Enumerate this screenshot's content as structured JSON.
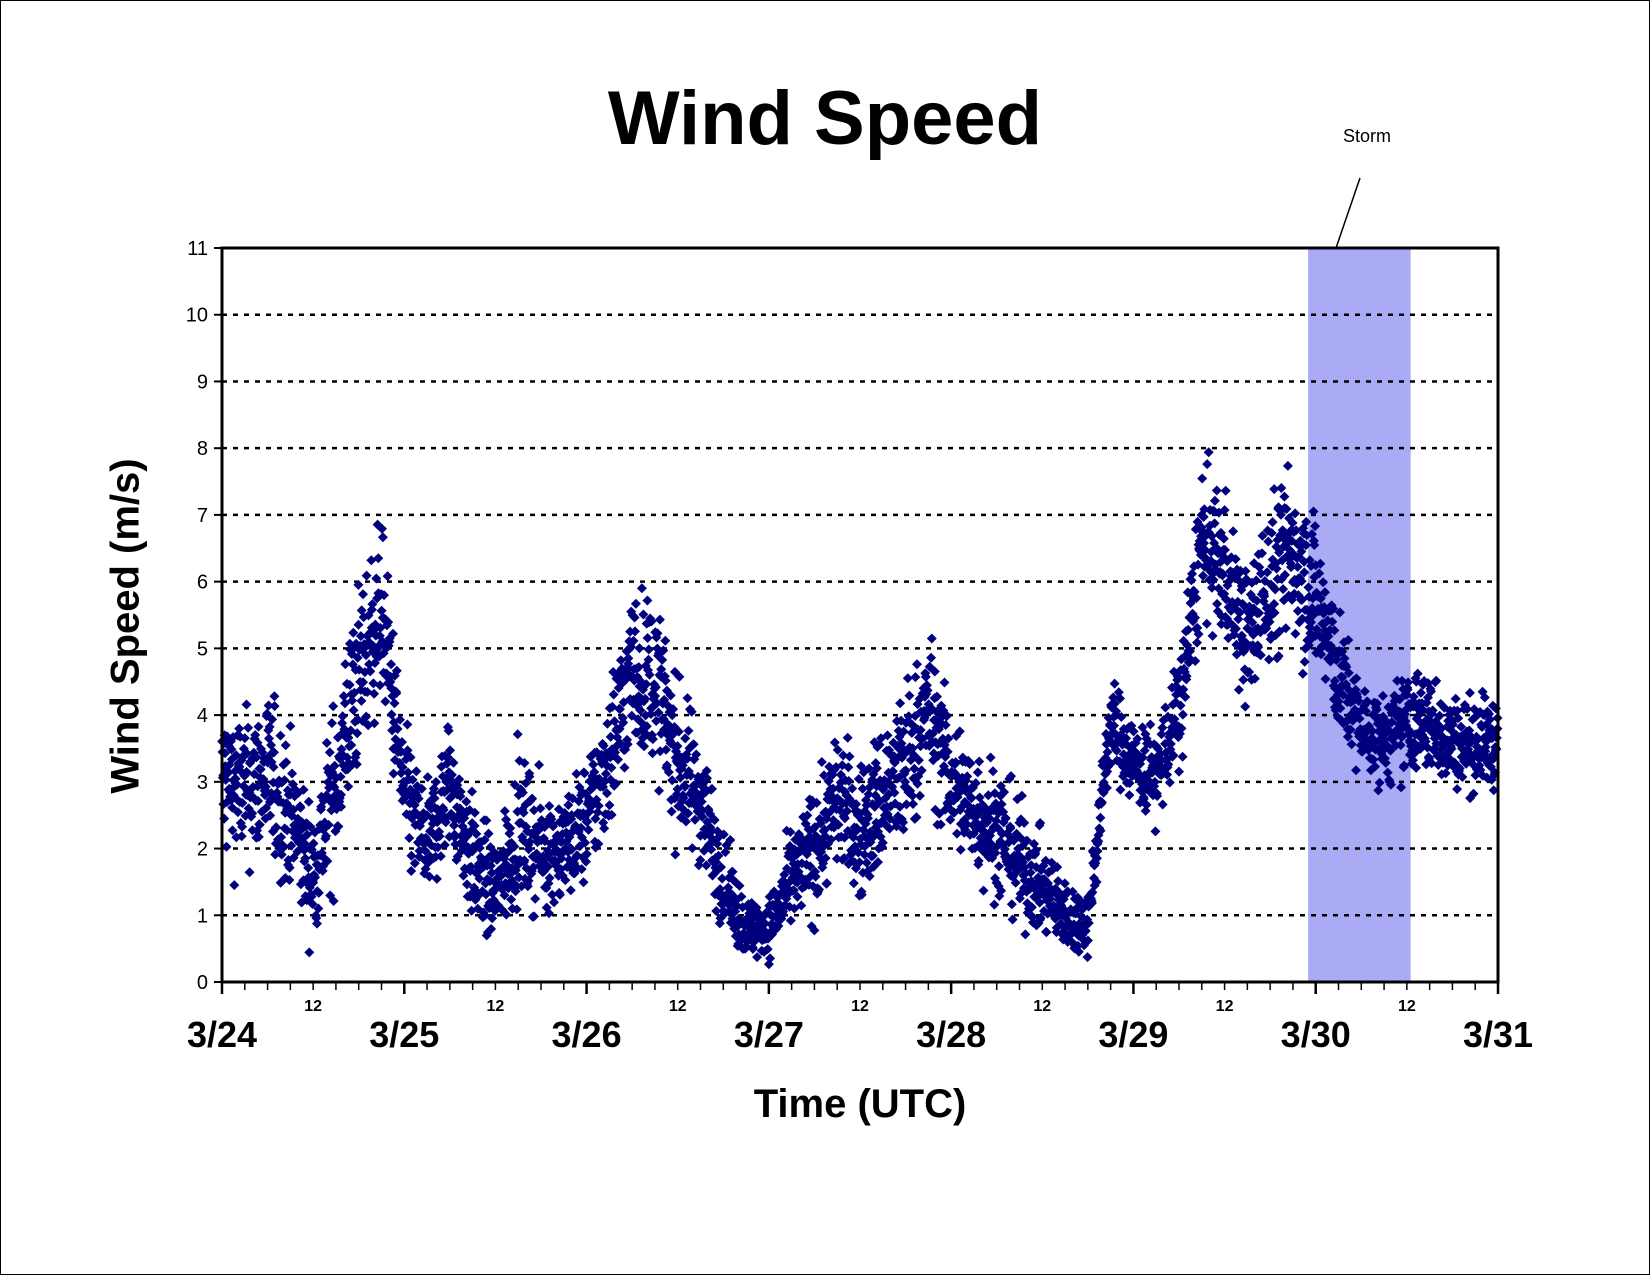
{
  "chart_data": {
    "type": "scatter",
    "title": "Wind Speed",
    "xlabel": "Time (UTC)",
    "ylabel": "Wind Speed (m/s)",
    "ylim": [
      0,
      11
    ],
    "yticks": [
      0,
      1,
      2,
      3,
      4,
      5,
      6,
      7,
      8,
      9,
      10,
      11
    ],
    "xlim": [
      "3/24 00:00",
      "3/31 00:00"
    ],
    "date_labels": [
      "3/24",
      "3/25",
      "3/26",
      "3/27",
      "3/28",
      "3/29",
      "3/30",
      "3/31"
    ],
    "hour_label": "12",
    "grid": "horizontal dotted",
    "marker": "diamond",
    "series_color": "#00007f",
    "annotation": {
      "text": "Storm",
      "start": "3/29 23:00",
      "end": "3/30 12:30",
      "color": "#aaaaf5"
    },
    "series": [
      {
        "x": [
          "3/24 00:00",
          "3/24 03:00",
          "3/24 06:00",
          "3/24 09:00",
          "3/24 12:00",
          "3/24 15:00",
          "3/24 18:00",
          "3/24 21:00",
          "3/25 00:00",
          "3/25 03:00",
          "3/25 06:00",
          "3/25 09:00",
          "3/25 12:00",
          "3/25 15:00",
          "3/25 18:00",
          "3/25 21:00",
          "3/26 00:00",
          "3/26 03:00",
          "3/26 06:00",
          "3/26 09:00",
          "3/26 12:00",
          "3/26 15:00",
          "3/26 18:00",
          "3/26 21:00",
          "3/27 00:00",
          "3/27 03:00",
          "3/27 06:00",
          "3/27 09:00",
          "3/27 12:00",
          "3/27 15:00",
          "3/27 18:00",
          "3/27 21:00",
          "3/28 00:00",
          "3/28 03:00",
          "3/28 06:00",
          "3/28 09:00",
          "3/28 12:00",
          "3/28 15:00",
          "3/28 18:00",
          "3/28 21:00",
          "3/29 00:00",
          "3/29 03:00",
          "3/29 06:00",
          "3/29 09:00",
          "3/29 12:00",
          "3/29 15:00",
          "3/29 18:00",
          "3/29 21:00",
          "3/30 00:00",
          "3/30 03:00",
          "3/30 06:00",
          "3/30 09:00",
          "3/30 12:00",
          "3/30 15:00",
          "3/30 18:00",
          "3/30 21:00"
        ],
        "values": [
          3.0,
          2.9,
          3.1,
          2.5,
          1.6,
          3.0,
          4.6,
          5.6,
          2.8,
          2.0,
          3.0,
          1.8,
          1.3,
          2.3,
          2.0,
          2.0,
          2.4,
          3.4,
          4.7,
          4.5,
          3.3,
          2.8,
          1.5,
          0.8,
          0.8,
          1.5,
          2.0,
          2.8,
          2.2,
          2.8,
          3.2,
          4.1,
          3.0,
          2.6,
          2.3,
          1.8,
          1.4,
          1.0,
          0.9,
          3.9,
          3.3,
          3.1,
          4.0,
          6.6,
          6.2,
          5.1,
          6.0,
          6.5,
          5.8,
          4.6,
          3.8,
          3.6,
          3.9,
          3.9,
          3.6,
          3.6
        ],
        "spread": [
          1.1,
          1.0,
          1.1,
          1.0,
          0.8,
          1.2,
          1.2,
          1.1,
          0.9,
          0.7,
          0.9,
          0.8,
          0.7,
          0.9,
          0.8,
          0.7,
          0.8,
          1.0,
          1.1,
          1.1,
          1.0,
          0.9,
          0.6,
          0.4,
          0.4,
          0.6,
          0.9,
          0.9,
          0.9,
          1.0,
          1.1,
          1.0,
          0.9,
          0.9,
          0.9,
          0.8,
          0.6,
          0.5,
          0.4,
          0.6,
          0.6,
          0.6,
          0.8,
          1.0,
          1.0,
          0.9,
          1.1,
          1.2,
          1.1,
          0.8,
          0.6,
          0.6,
          0.7,
          0.7,
          0.6,
          0.6
        ]
      }
    ]
  }
}
